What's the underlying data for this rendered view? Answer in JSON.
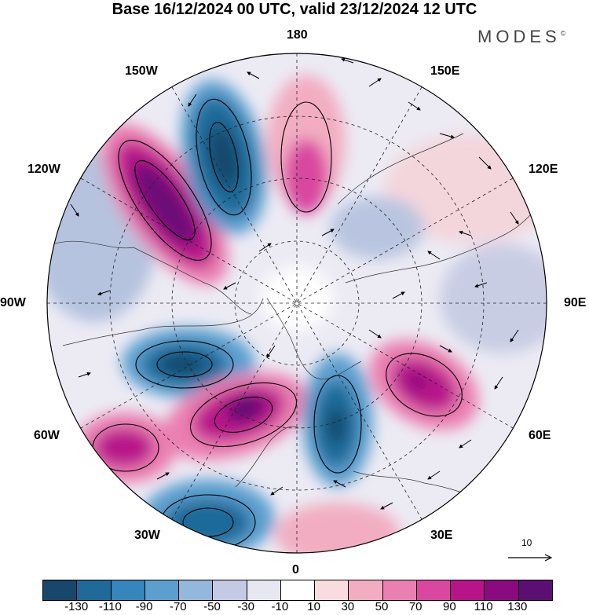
{
  "title": "Base 16/12/2024 00 UTC, valid 23/12/2024 12 UTC",
  "brand": "MODES",
  "brand_mark": "©",
  "longitude_labels": {
    "n": "180",
    "ne": "150E",
    "e1": "120E",
    "e": "90E",
    "se1": "60E",
    "se": "30E",
    "s": "0",
    "sw": "30W",
    "w1": "60W",
    "w": "90W",
    "nw1": "120W",
    "nw": "150W"
  },
  "vector_scale": {
    "label": "10",
    "icon": "arrow-right-icon"
  },
  "colorbar": {
    "colors": [
      "#17476a",
      "#1f6a99",
      "#3685bd",
      "#5b9fcf",
      "#93b8dc",
      "#c4cae3",
      "#e7e7f2",
      "#ffffff",
      "#f9dbe0",
      "#f2adc2",
      "#eb7fb1",
      "#d9479f",
      "#b8148a",
      "#8c0a80",
      "#5b0f73"
    ],
    "ticks": [
      "-130",
      "-110",
      "-90",
      "-70",
      "-50",
      "-30",
      "-10",
      "10",
      "30",
      "50",
      "70",
      "90",
      "110",
      "130"
    ]
  },
  "anomaly_lobes": [
    {
      "name": "pacific-positive",
      "value": 130
    },
    {
      "name": "north-pacific-negative",
      "value": -130
    },
    {
      "name": "aleutian-positive",
      "value": 110
    },
    {
      "name": "canada-negative",
      "value": -110
    },
    {
      "name": "atlantic-positive",
      "value": 130
    },
    {
      "name": "far-atlantic-positive",
      "value": 110
    },
    {
      "name": "scandinavia-negative",
      "value": -110
    },
    {
      "name": "siberia-positive",
      "value": 110
    },
    {
      "name": "south-atlantic-negative",
      "value": -110
    },
    {
      "name": "africa-positive",
      "value": 50
    }
  ]
}
